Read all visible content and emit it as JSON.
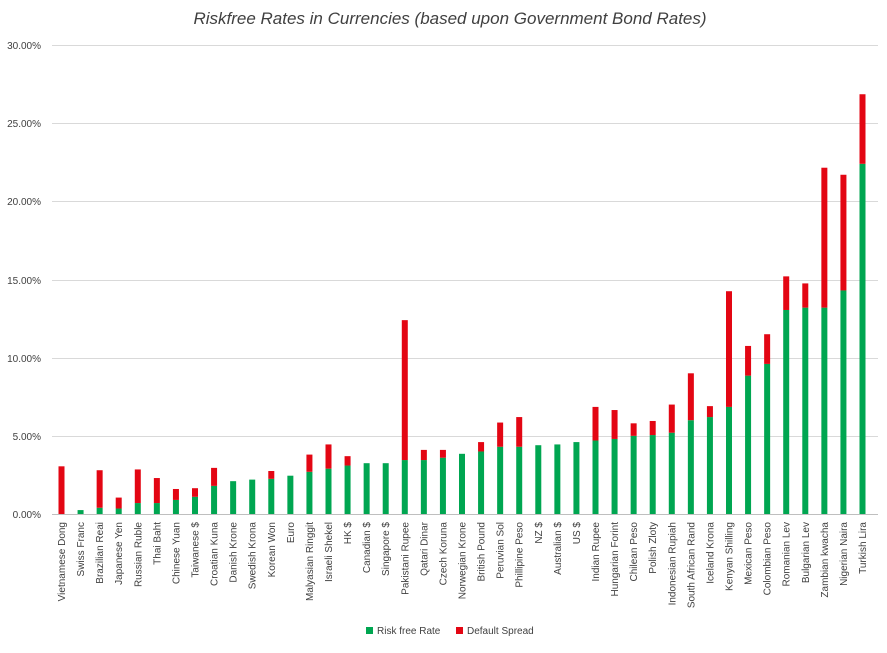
{
  "chart_data": {
    "type": "bar",
    "stacked": true,
    "title": "Riskfree Rates in Currencies (based upon Government Bond Rates)",
    "xlabel": "",
    "ylabel": "",
    "ylim": [
      0,
      0.3
    ],
    "yticks": [
      0,
      0.05,
      0.1,
      0.15,
      0.2,
      0.25,
      0.3
    ],
    "ytick_labels": [
      "0.00%",
      "5.00%",
      "10.00%",
      "15.00%",
      "20.00%",
      "25.00%",
      "30.00%"
    ],
    "grid": true,
    "legend_position": "bottom",
    "categories": [
      "Vietnamese Dong",
      "Swiss Franc",
      "Brazilian Reai",
      "Japanese Yen",
      "Russian Ruble",
      "Thai Baht",
      "Chinese Yuan",
      "Taiwanese $",
      "Croatian Kuna",
      "Danish Krone",
      "Swedish Krona",
      "Korean Won",
      "Euro",
      "Malyasian Ringgit",
      "Israeli Shekel",
      "HK $",
      "Canadian $",
      "Singapore $",
      "Pakistani Rupee",
      "Qatari Dinar",
      "Czech Koruna",
      "Norwegian Krone",
      "British Pound",
      "Peruvian Sol",
      "Phillipine Peso",
      "NZ $",
      "Australian $",
      "US $",
      "Indian Rupee",
      "Hungarian Forint",
      "Chilean Peso",
      "Polish Zloty",
      "Indonesian Rupiah",
      "South African Rand",
      "Iceland Krona",
      "Kenyan Shilling",
      "Mexican Peso",
      "Colombian Peso",
      "Romanian Lev",
      "Bulgarian Lev",
      "Zambian kwacha",
      "Nigerian Naira",
      "Turkish Lira"
    ],
    "series": [
      {
        "name": "Risk free Rate",
        "color": "#00a651",
        "values": [
          0.0,
          0.0025,
          0.004,
          0.0035,
          0.007,
          0.007,
          0.009,
          0.011,
          0.018,
          0.021,
          0.022,
          0.0225,
          0.0245,
          0.027,
          0.029,
          0.031,
          0.0325,
          0.0325,
          0.0345,
          0.0345,
          0.036,
          0.0385,
          0.04,
          0.043,
          0.043,
          0.044,
          0.0445,
          0.046,
          0.047,
          0.048,
          0.05,
          0.0505,
          0.052,
          0.06,
          0.062,
          0.0685,
          0.0885,
          0.096,
          0.1305,
          0.132,
          0.132,
          0.143,
          0.224
        ]
      },
      {
        "name": "Default Spread",
        "color": "#e30613",
        "values": [
          0.0305,
          0.0,
          0.024,
          0.007,
          0.0215,
          0.016,
          0.007,
          0.0055,
          0.0115,
          0.0,
          0.0,
          0.005,
          0.0,
          0.011,
          0.0155,
          0.006,
          0.0,
          0.0,
          0.0895,
          0.0065,
          0.005,
          0.0,
          0.006,
          0.0155,
          0.019,
          0.0,
          0.0,
          0.0,
          0.0215,
          0.0185,
          0.008,
          0.009,
          0.018,
          0.03,
          0.007,
          0.074,
          0.019,
          0.019,
          0.0215,
          0.0155,
          0.0895,
          0.074,
          0.0445
        ]
      }
    ]
  }
}
